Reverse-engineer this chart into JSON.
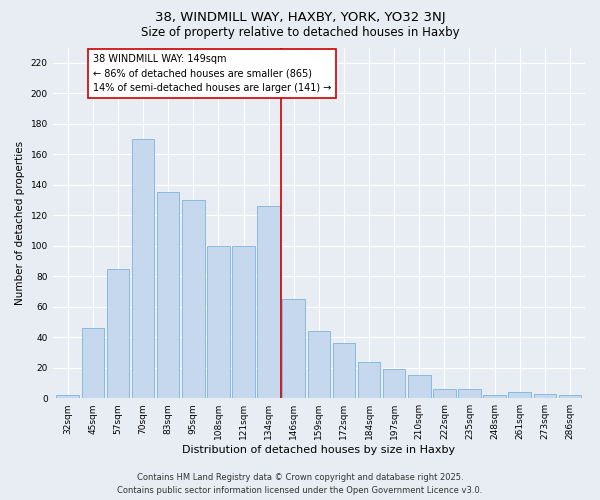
{
  "title": "38, WINDMILL WAY, HAXBY, YORK, YO32 3NJ",
  "subtitle": "Size of property relative to detached houses in Haxby",
  "xlabel": "Distribution of detached houses by size in Haxby",
  "ylabel": "Number of detached properties",
  "categories": [
    "32sqm",
    "45sqm",
    "57sqm",
    "70sqm",
    "83sqm",
    "95sqm",
    "108sqm",
    "121sqm",
    "134sqm",
    "146sqm",
    "159sqm",
    "172sqm",
    "184sqm",
    "197sqm",
    "210sqm",
    "222sqm",
    "235sqm",
    "248sqm",
    "261sqm",
    "273sqm",
    "286sqm"
  ],
  "values": [
    2,
    46,
    85,
    170,
    135,
    130,
    100,
    100,
    126,
    65,
    44,
    36,
    24,
    19,
    15,
    6,
    6,
    2,
    4,
    3,
    2
  ],
  "bar_color": "#c5d8ee",
  "bar_edge_color": "#6aaad4",
  "vline_x_index": 9,
  "vline_color": "#cc0000",
  "annotation_text_line1": "38 WINDMILL WAY: 149sqm",
  "annotation_text_line2": "← 86% of detached houses are smaller (865)",
  "annotation_text_line3": "14% of semi-detached houses are larger (141) →",
  "annotation_box_color": "#ffffff",
  "annotation_box_edge": "#cc0000",
  "ylim": [
    0,
    230
  ],
  "yticks": [
    0,
    20,
    40,
    60,
    80,
    100,
    120,
    140,
    160,
    180,
    200,
    220
  ],
  "background_color": "#e8edf4",
  "grid_color": "#ffffff",
  "footer_line1": "Contains HM Land Registry data © Crown copyright and database right 2025.",
  "footer_line2": "Contains public sector information licensed under the Open Government Licence v3.0.",
  "title_fontsize": 9.5,
  "subtitle_fontsize": 8.5,
  "xlabel_fontsize": 8,
  "ylabel_fontsize": 7.5,
  "tick_fontsize": 6.5,
  "annotation_fontsize": 7,
  "footer_fontsize": 6
}
